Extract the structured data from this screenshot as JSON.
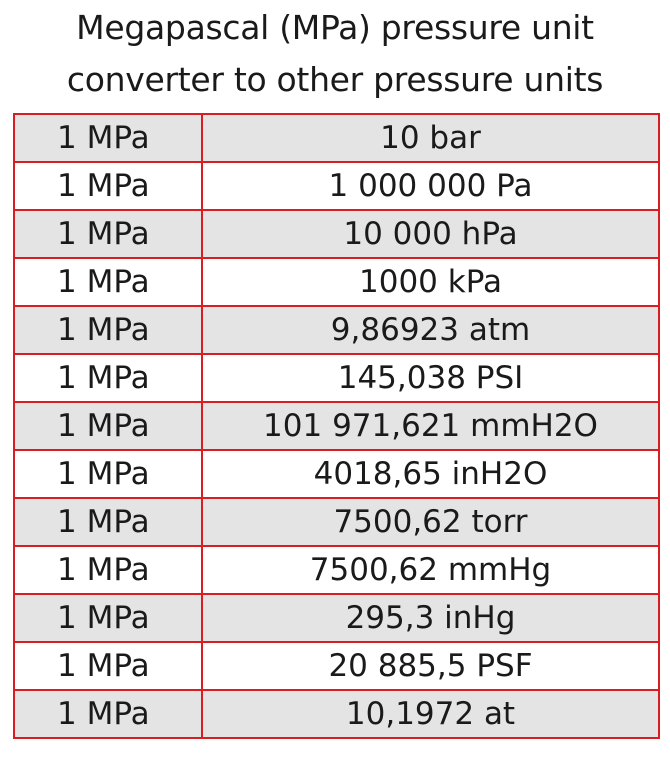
{
  "title": {
    "line1": "Megapascal (MPa) pressure unit",
    "line2": "converter to other pressure units"
  },
  "colors": {
    "border": "#d81e22",
    "row_shaded": "#e4e4e4",
    "row_plain": "#ffffff",
    "text": "#1a1a1a"
  },
  "table": {
    "rows": [
      {
        "from": "1 MPa",
        "to": "10 bar"
      },
      {
        "from": "1 MPa",
        "to": "1 000 000 Pa"
      },
      {
        "from": "1 MPa",
        "to": "10 000 hPa"
      },
      {
        "from": "1 MPa",
        "to": "1000 kPa"
      },
      {
        "from": "1 MPa",
        "to": "9,86923 atm"
      },
      {
        "from": "1 MPa",
        "to": "145,038 PSI"
      },
      {
        "from": "1 MPa",
        "to": "101 971,621 mmH2O"
      },
      {
        "from": "1 MPa",
        "to": "4018,65 inH2O"
      },
      {
        "from": "1 MPa",
        "to": "7500,62 torr"
      },
      {
        "from": "1 MPa",
        "to": "7500,62 mmHg"
      },
      {
        "from": "1 MPa",
        "to": "295,3 inHg"
      },
      {
        "from": "1 MPa",
        "to": "20 885,5 PSF"
      },
      {
        "from": "1 MPa",
        "to": "10,1972 at"
      }
    ]
  }
}
